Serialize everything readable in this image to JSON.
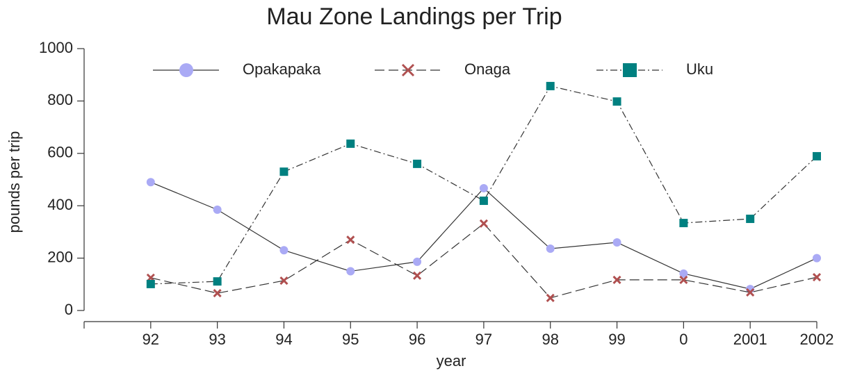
{
  "chart_data": {
    "type": "line",
    "title": "Mau Zone Landings per Trip",
    "x_label": "year",
    "y_label": "pounds per trip",
    "categories": [
      "92",
      "93",
      "94",
      "95",
      "96",
      "97",
      "98",
      "99",
      "0",
      "2001",
      "2002"
    ],
    "series": [
      {
        "name": "Opakapaka",
        "color": "#aaaaf5",
        "marker": "circle",
        "line_style": "solid",
        "values": [
          490,
          385,
          230,
          150,
          186,
          467,
          236,
          260,
          141,
          82,
          200
        ]
      },
      {
        "name": "Onaga",
        "color": "#b05050",
        "marker": "x",
        "line_style": "dashed",
        "values": [
          125,
          66,
          114,
          270,
          133,
          332,
          48,
          117,
          117,
          69,
          127
        ]
      },
      {
        "name": "Uku",
        "color": "#008080",
        "marker": "square",
        "line_style": "dashdot",
        "values": [
          101,
          111,
          530,
          637,
          560,
          419,
          857,
          798,
          334,
          350,
          589
        ]
      }
    ],
    "ylim": [
      0,
      1000
    ],
    "yticks": [
      0,
      200,
      400,
      600,
      800,
      1000
    ],
    "grid": false,
    "legend": "top"
  }
}
